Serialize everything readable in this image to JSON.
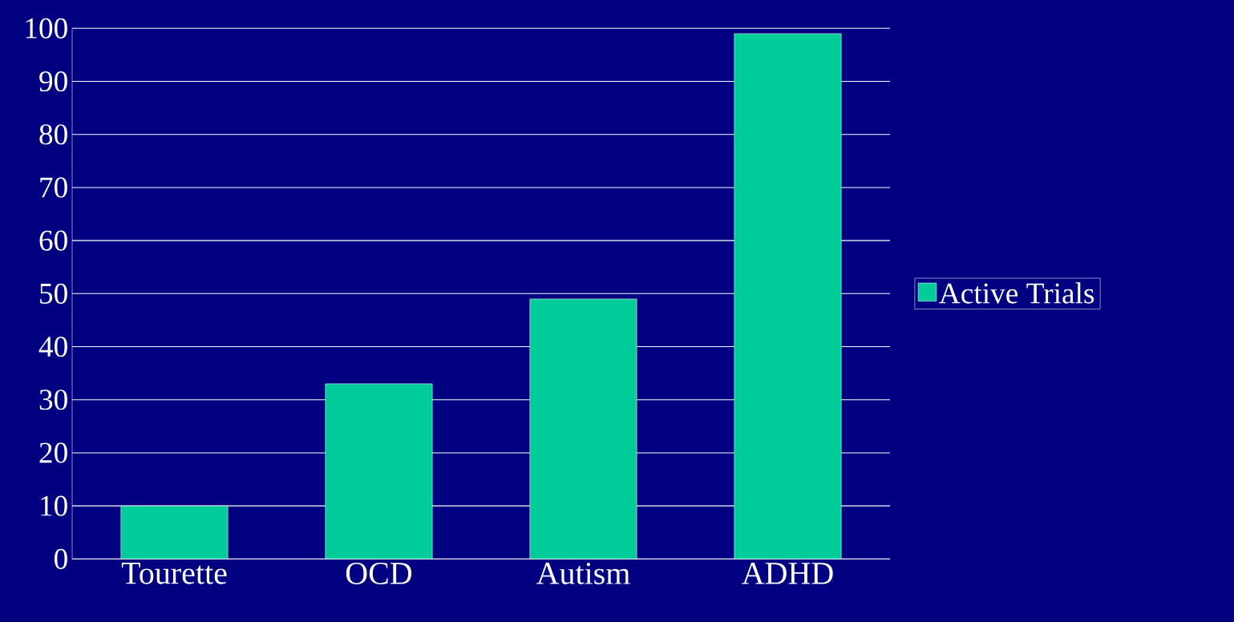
{
  "chart_data": {
    "type": "bar",
    "categories": [
      "Tourette",
      "OCD",
      "Autism",
      "ADHD"
    ],
    "series": [
      {
        "name": "Active Trials",
        "color": "#00cc99",
        "values": [
          10,
          33,
          49,
          99
        ]
      }
    ],
    "ylim": [
      0,
      100
    ],
    "yticks": [
      0,
      10,
      20,
      30,
      40,
      50,
      60,
      70,
      80,
      90,
      100
    ],
    "grid": "y",
    "legend": "right"
  }
}
